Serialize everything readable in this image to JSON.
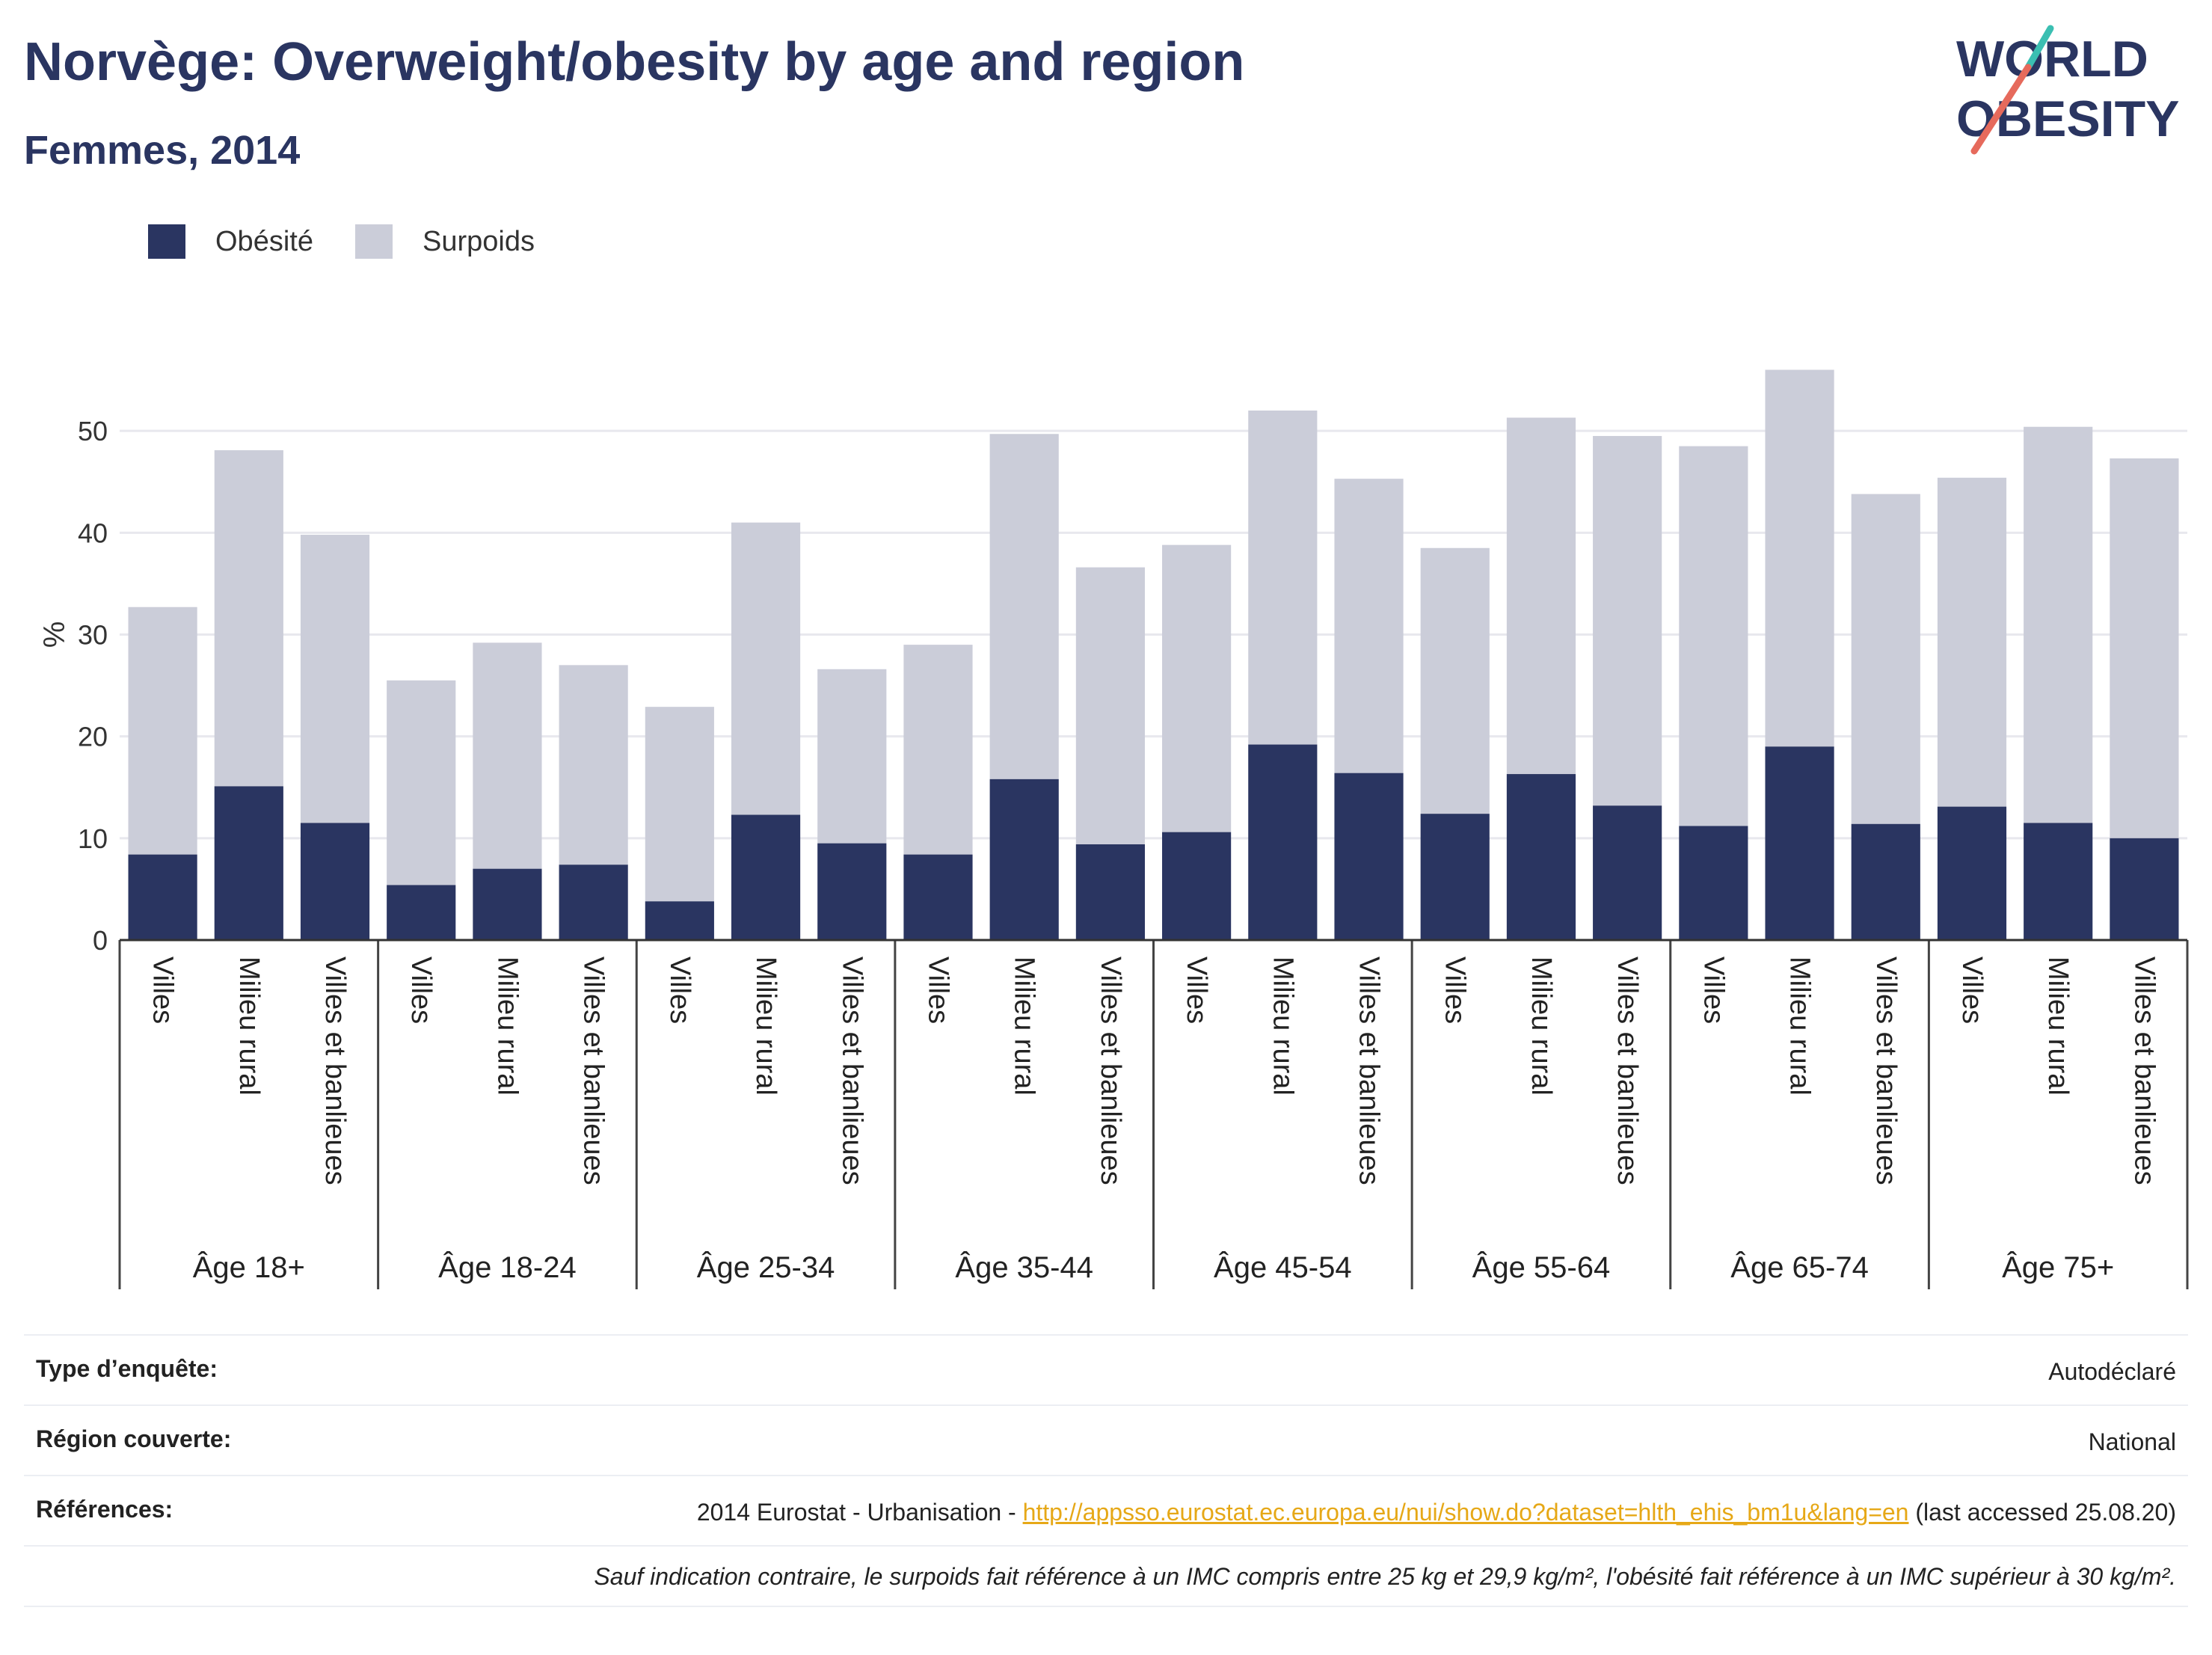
{
  "header": {
    "title": "Norvège: Overweight/obesity by age and region",
    "subtitle": "Femmes, 2014"
  },
  "logo": {
    "line1": "WORLD",
    "line2": "OBESITY"
  },
  "colors": {
    "obesity": "#2a3561",
    "overweight": "#cbcdd9",
    "axis": "#333333",
    "grid": "#e8e8ee"
  },
  "chart_data": {
    "type": "bar",
    "stacked": true,
    "ylabel": "%",
    "ylim": [
      0,
      60
    ],
    "yticks": [
      0,
      10,
      20,
      30,
      40,
      50
    ],
    "grid": true,
    "legend_position": "top-left",
    "groups": [
      "Âge 18+",
      "Âge 18-24",
      "Âge 25-34",
      "Âge 35-44",
      "Âge 45-54",
      "Âge 55-64",
      "Âge 65-74",
      "Âge 75+"
    ],
    "subcategories": [
      "Villes",
      "Milieu rural",
      "Villes et banlieues"
    ],
    "series": [
      {
        "name": "Obésité",
        "values": [
          [
            8.4,
            15.1,
            11.5
          ],
          [
            5.4,
            7.0,
            7.4
          ],
          [
            3.8,
            12.3,
            9.5
          ],
          [
            8.4,
            15.8,
            9.4
          ],
          [
            10.6,
            19.2,
            16.4
          ],
          [
            12.4,
            16.3,
            13.2
          ],
          [
            11.2,
            19.0,
            11.4
          ],
          [
            13.1,
            11.5,
            10.0
          ]
        ]
      },
      {
        "name": "Surpoids",
        "values": [
          [
            24.3,
            33.0,
            28.3
          ],
          [
            20.1,
            22.2,
            19.6
          ],
          [
            19.1,
            28.7,
            17.1
          ],
          [
            20.6,
            33.9,
            27.2
          ],
          [
            28.2,
            32.8,
            28.9
          ],
          [
            26.1,
            35.0,
            36.3
          ],
          [
            37.3,
            37.0,
            32.4
          ],
          [
            32.3,
            38.9,
            37.3
          ]
        ]
      }
    ]
  },
  "footer": {
    "rows": [
      {
        "label": "Type d’enquête:",
        "value": "Autodéclaré"
      },
      {
        "label": "Région couverte:",
        "value": "National"
      },
      {
        "label": "Références:",
        "value_prefix": "2014 Eurostat - Urbanisation - ",
        "link": "http://appsso.eurostat.ec.europa.eu/nui/show.do?dataset=hlth_ehis_bm1u&lang=en",
        "value_suffix": " (last accessed 25.08.20)"
      }
    ],
    "note": "Sauf indication contraire, le surpoids fait référence à un IMC compris entre 25 kg et 29,9 kg/m², l'obésité fait référence à un IMC supérieur à 30 kg/m²."
  }
}
